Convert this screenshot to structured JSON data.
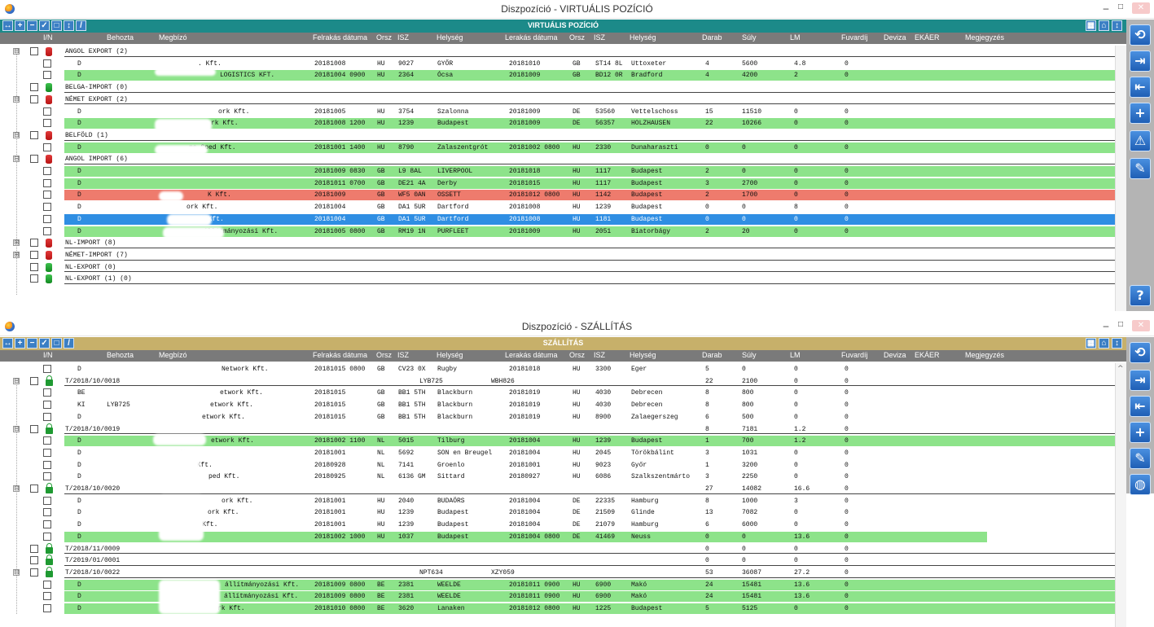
{
  "win1": {
    "title": "Diszpozíció - VIRTUÁLIS POZÍCIÓ",
    "toolbar_title": "VIRTUÁLIS POZÍCIÓ",
    "rows": [
      {
        "kind": "group",
        "icon": "db-red",
        "exp": "⊟",
        "label": "ANGOL EXPORT (2)"
      },
      {
        "kind": "data",
        "color": "white",
        "c": [
          "D",
          "",
          ". Kft.",
          "20181008",
          "HU",
          "9027",
          "GYŐR",
          "20181010",
          "GB",
          "ST14 8L",
          "Uttoxeter",
          "4",
          "5600",
          "4.8",
          "0"
        ]
      },
      {
        "kind": "data",
        "color": "green",
        "c": [
          "D",
          "",
          "LOGISTICS KFT.",
          "20181004 0900",
          "HU",
          "2364",
          "Ócsa",
          "20181009",
          "GB",
          "BD12 0R",
          "Bradford",
          "4",
          "4200",
          "2",
          "0"
        ]
      },
      {
        "kind": "group",
        "icon": "db-green",
        "exp": "",
        "label": "BELGA-IMPORT (0)"
      },
      {
        "kind": "group",
        "icon": "db-red",
        "exp": "⊟",
        "label": "NÉMET EXPORT (2)"
      },
      {
        "kind": "data",
        "color": "white",
        "c": [
          "D",
          "",
          "ork Kft.",
          "20181005",
          "HU",
          "3754",
          "Szalonna",
          "20181009",
          "DE",
          "53560",
          "Vettelschoss",
          "15",
          "11510",
          "0",
          "0"
        ]
      },
      {
        "kind": "data",
        "color": "green",
        "c": [
          "D",
          "",
          "rk Kft.",
          "20181008 1200",
          "HU",
          "1239",
          "Budapest",
          "20181009",
          "DE",
          "56357",
          "HOLZHAUSEN",
          "22",
          "10266",
          "0",
          "0"
        ]
      },
      {
        "kind": "group",
        "icon": "db-red",
        "exp": "⊟",
        "label": "BELFÖLD (1)"
      },
      {
        "kind": "data",
        "color": "green",
        "c": [
          "D",
          "",
          "ns Sped Kft.",
          "20181001 1400",
          "HU",
          "8790",
          "Zalaszentgrót",
          "20181002 0800",
          "HU",
          "2330",
          "Dunaharaszti",
          "0",
          "0",
          "0",
          "0"
        ]
      },
      {
        "kind": "group",
        "icon": "db-red",
        "exp": "⊟",
        "label": "ANGOL IMPORT (6)"
      },
      {
        "kind": "data",
        "color": "green",
        "c": [
          "D",
          "",
          "",
          "20181009 0830",
          "GB",
          "L9 8AL",
          "LIVERPOOL",
          "20181018",
          "HU",
          "1117",
          "Budapest",
          "2",
          "0",
          "0",
          "0"
        ]
      },
      {
        "kind": "data",
        "color": "green",
        "c": [
          "D",
          "",
          "",
          "20181011 0700",
          "GB",
          "DE21 4A",
          "Derby",
          "20181015",
          "HU",
          "1117",
          "Budapest",
          "3",
          "2700",
          "0",
          "0"
        ]
      },
      {
        "kind": "data",
        "color": "red",
        "c": [
          "D",
          "",
          "K Kft.",
          "20181009",
          "GB",
          "WF5 0AN",
          "OSSETT",
          "20181012 0800",
          "HU",
          "1142",
          "Budapest",
          "2",
          "1700",
          "0",
          "0"
        ]
      },
      {
        "kind": "data",
        "color": "white",
        "c": [
          "D",
          "",
          "ork Kft.",
          "20181004",
          "GB",
          "DA1 5UR",
          "Dartford",
          "20181008",
          "HU",
          "1239",
          "Budapest",
          "0",
          "0",
          "8",
          "0"
        ]
      },
      {
        "kind": "data",
        "color": "blue",
        "c": [
          "D",
          "",
          "etwork Kft.",
          "20181004",
          "GB",
          "DA1 5UR",
          "Dartford",
          "20181008",
          "HU",
          "1181",
          "Budapest",
          "0",
          "0",
          "0",
          "0"
        ]
      },
      {
        "kind": "data",
        "color": "green",
        "c": [
          "D",
          "",
          "állítmányozási Kft.",
          "20181005 0800",
          "GB",
          "RM19 1N",
          "PURFLEET",
          "20181009",
          "HU",
          "2051",
          "Biatorbágy",
          "2",
          "20",
          "0",
          "0"
        ]
      },
      {
        "kind": "group",
        "icon": "db-red",
        "exp": "⊞",
        "label": "NL-IMPORT (8)"
      },
      {
        "kind": "group",
        "icon": "db-red",
        "exp": "⊞",
        "label": "NÉMET-IMPORT (7)"
      },
      {
        "kind": "group",
        "icon": "db-green",
        "exp": "",
        "label": "NL-EXPORT (0)"
      },
      {
        "kind": "group",
        "icon": "db-green",
        "exp": "",
        "label": "NL-EXPORT (1) (0)"
      }
    ]
  },
  "win2": {
    "title": "Diszpozíció - SZÁLLÍTÁS",
    "toolbar_title": "SZÁLLÍTÁS",
    "rows": [
      {
        "kind": "data",
        "color": "white",
        "c": [
          "D",
          "",
          "Network Kft.",
          "20181015 0800",
          "GB",
          "CV23 0X",
          "Rugby",
          "20181018",
          "HU",
          "3300",
          "Eger",
          "5",
          "0",
          "0",
          "0"
        ]
      },
      {
        "kind": "group",
        "icon": "lock",
        "exp": "⊟",
        "label": "T/2018/10/0018",
        "extra": [
          "LYB725",
          "WBH826"
        ],
        "tot": [
          "22",
          "2100",
          "0",
          "0"
        ]
      },
      {
        "kind": "data",
        "color": "white",
        "c": [
          "BE",
          "",
          "etwork Kft.",
          "20181015",
          "GB",
          "BB1 5TH",
          "Blackburn",
          "20181019",
          "HU",
          "4030",
          "Debrecen",
          "8",
          "800",
          "0",
          "0"
        ]
      },
      {
        "kind": "data",
        "color": "white",
        "c": [
          "KI",
          "LYB725",
          "etwork Kft.",
          "20181015",
          "GB",
          "BB1 5TH",
          "Blackburn",
          "20181019",
          "HU",
          "4030",
          "Debrecen",
          "8",
          "800",
          "0",
          "0"
        ]
      },
      {
        "kind": "data",
        "color": "white",
        "c": [
          "D",
          "",
          "etwork Kft.",
          "20181015",
          "GB",
          "BB1 5TH",
          "Blackburn",
          "20181019",
          "HU",
          "8900",
          "Zalaegerszeg",
          "6",
          "500",
          "0",
          "0"
        ]
      },
      {
        "kind": "group",
        "icon": "lock",
        "exp": "⊟",
        "label": "T/2018/10/0019",
        "extra": [
          "",
          ""
        ],
        "tot": [
          "8",
          "7181",
          "1.2",
          "0"
        ]
      },
      {
        "kind": "data",
        "color": "green",
        "c": [
          "D",
          "",
          "etwork Kft.",
          "20181002 1100",
          "NL",
          "5015",
          "Tilburg",
          "20181004",
          "HU",
          "1239",
          "Budapest",
          "1",
          "700",
          "1.2",
          "0"
        ]
      },
      {
        "kind": "data",
        "color": "white",
        "c": [
          "D",
          "",
          "Kft",
          "20181001",
          "NL",
          "5692",
          "SON en Breugel",
          "20181004",
          "HU",
          "2045",
          "Törökbálint",
          "3",
          "1031",
          "0",
          "0"
        ]
      },
      {
        "kind": "data",
        "color": "white",
        "c": [
          "D",
          "",
          "s Kft.",
          "20180928",
          "NL",
          "7141",
          "Groenlo",
          "20181001",
          "HU",
          "9023",
          "Győr",
          "1",
          "3200",
          "0",
          "0"
        ]
      },
      {
        "kind": "data",
        "color": "white",
        "c": [
          "D",
          "",
          "ped Kft.",
          "20180925",
          "NL",
          "6136 GM",
          "Sittard",
          "20180927",
          "HU",
          "6086",
          "Szalkszentmárto",
          "3",
          "2250",
          "0",
          "0"
        ]
      },
      {
        "kind": "group",
        "icon": "lock",
        "exp": "⊟",
        "label": "T/2018/10/0020",
        "extra": [
          "",
          ""
        ],
        "tot": [
          "27",
          "14082",
          "16.6",
          "0"
        ]
      },
      {
        "kind": "data",
        "color": "white",
        "c": [
          "D",
          "",
          "ork Kft.",
          "20181001",
          "HU",
          "2040",
          "BUDAÖRS",
          "20181004",
          "DE",
          "22335",
          "Hamburg",
          "8",
          "1000",
          "3",
          "0"
        ]
      },
      {
        "kind": "data",
        "color": "white",
        "c": [
          "D",
          "",
          "ork Kft.",
          "20181001",
          "HU",
          "1239",
          "Budapest",
          "20181004",
          "DE",
          "21509",
          "Glinde",
          "13",
          "7082",
          "0",
          "0"
        ]
      },
      {
        "kind": "data",
        "color": "white",
        "c": [
          "D",
          "",
          "ork Kft.",
          "20181001",
          "HU",
          "1239",
          "Budapest",
          "20181004",
          "DE",
          "21079",
          "Hamburg",
          "6",
          "6000",
          "0",
          "0"
        ]
      },
      {
        "kind": "data",
        "color": "green",
        "c": [
          "D",
          "",
          "bH",
          "20181002 1000",
          "HU",
          "1037",
          "Budapest",
          "20181004 0800",
          "DE",
          "41469",
          "Neuss",
          "0",
          "0",
          "13.6",
          "0"
        ]
      },
      {
        "kind": "group",
        "icon": "lock",
        "exp": "",
        "label": "T/2018/11/0009",
        "extra": [
          "",
          ""
        ],
        "tot": [
          "0",
          "0",
          "0",
          "0"
        ]
      },
      {
        "kind": "group",
        "icon": "lock",
        "exp": "",
        "label": "T/2019/01/0001",
        "extra": [
          "",
          ""
        ],
        "tot": [
          "0",
          "0",
          "0",
          "0"
        ]
      },
      {
        "kind": "group",
        "icon": "lock",
        "exp": "⊟",
        "label": "T/2018/10/0022",
        "extra": [
          "NPT634",
          "XZY059"
        ],
        "tot": [
          "53",
          "36087",
          "27.2",
          "0"
        ]
      },
      {
        "kind": "data",
        "color": "green",
        "c": [
          "D",
          "",
          "állítmányozási Kft.",
          "20181009 0800",
          "BE",
          "2381",
          "WEELDE",
          "20181011 0900",
          "HU",
          "6900",
          "Makó",
          "24",
          "15481",
          "13.6",
          "0"
        ]
      },
      {
        "kind": "data",
        "color": "green",
        "c": [
          "D",
          "",
          "állítmányozási Kft.",
          "20181009 0800",
          "BE",
          "2381",
          "WEELDE",
          "20181011 0900",
          "HU",
          "6900",
          "Makó",
          "24",
          "15481",
          "13.6",
          "0"
        ]
      },
      {
        "kind": "data",
        "color": "green",
        "c": [
          "D",
          "",
          "Network Kft.",
          "20181010 0800",
          "BE",
          "3620",
          "Lanaken",
          "20181012 0800",
          "HU",
          "1225",
          "Budapest",
          "5",
          "5125",
          "0",
          "0"
        ]
      }
    ]
  },
  "headers": [
    "I/N",
    "Behozta",
    "Megbízó",
    "Felrakás dátuma",
    "Orsz",
    "ISZ",
    "Helység",
    "Lerakás dátuma",
    "Orsz",
    "ISZ",
    "Helység",
    "Darab",
    "Súly",
    "LM",
    "Fuvardíj",
    "Deviza",
    "EKÁER",
    "Megjegyzés"
  ],
  "side_help": "?",
  "colors": {
    "teal": "#1c8a89",
    "gold": "#c7b06a",
    "green_row": "#8de38a",
    "red_row": "#ee7b6d",
    "selected_row": "#2f8ee3",
    "header": "#7a7a7a"
  }
}
